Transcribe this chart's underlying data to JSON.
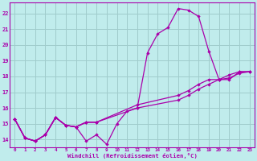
{
  "xlabel": "Windchill (Refroidissement éolien,°C)",
  "bg_color": "#c0ecec",
  "grid_color": "#a0cccc",
  "line_color": "#aa00aa",
  "xlim": [
    -0.5,
    23.5
  ],
  "ylim": [
    13.5,
    22.7
  ],
  "xticks": [
    0,
    1,
    2,
    3,
    4,
    5,
    6,
    7,
    8,
    9,
    10,
    11,
    12,
    13,
    14,
    15,
    16,
    17,
    18,
    19,
    20,
    21,
    22,
    23
  ],
  "yticks": [
    14,
    15,
    16,
    17,
    18,
    19,
    20,
    21,
    22
  ],
  "series": [
    {
      "x": [
        0,
        1,
        2,
        3,
        4,
        5,
        6,
        7,
        8,
        9,
        10,
        11,
        12,
        13,
        14,
        15,
        16,
        17,
        18,
        19,
        20,
        21,
        22,
        23
      ],
      "y": [
        15.3,
        14.1,
        13.9,
        14.3,
        15.4,
        14.9,
        14.8,
        13.9,
        14.3,
        13.7,
        15.0,
        15.8,
        16.0,
        19.5,
        20.7,
        21.1,
        22.3,
        22.2,
        21.8,
        19.6,
        17.8,
        17.8,
        18.3,
        18.3
      ]
    },
    {
      "x": [
        0,
        1,
        2,
        3,
        4,
        5,
        6,
        7,
        8
      ],
      "y": [
        15.3,
        14.1,
        13.9,
        14.3,
        15.4,
        14.9,
        14.8,
        15.1,
        15.1
      ]
    },
    {
      "x": [
        0,
        1,
        2,
        3,
        4,
        5,
        6,
        7,
        8,
        12,
        16,
        17,
        18,
        19,
        20,
        21,
        22,
        23
      ],
      "y": [
        15.3,
        14.1,
        13.9,
        14.3,
        15.4,
        14.9,
        14.8,
        15.1,
        15.1,
        16.2,
        16.8,
        17.1,
        17.5,
        17.8,
        17.8,
        18.1,
        18.3,
        18.3
      ]
    },
    {
      "x": [
        0,
        1,
        2,
        3,
        4,
        5,
        6,
        7,
        8,
        12,
        16,
        17,
        18,
        19,
        20,
        21,
        22,
        23
      ],
      "y": [
        15.3,
        14.1,
        13.9,
        14.3,
        15.4,
        14.9,
        14.8,
        15.1,
        15.1,
        16.0,
        16.5,
        16.8,
        17.2,
        17.5,
        17.8,
        17.9,
        18.2,
        18.3
      ]
    }
  ]
}
